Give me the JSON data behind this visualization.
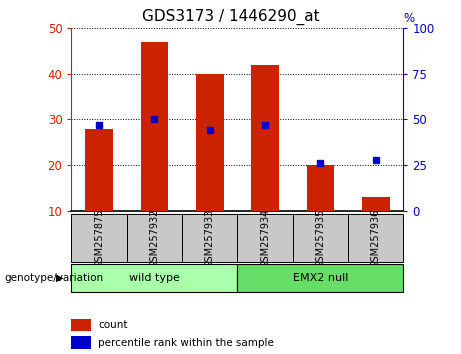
{
  "title": "GDS3173 / 1446290_at",
  "categories": [
    "GSM257875",
    "GSM257932",
    "GSM257933",
    "GSM257934",
    "GSM257935",
    "GSM257936"
  ],
  "bar_values": [
    28,
    47,
    40,
    42,
    20,
    13
  ],
  "percentile_values": [
    47,
    50,
    44,
    47,
    26,
    28
  ],
  "ylim_left": [
    10,
    50
  ],
  "ylim_right": [
    0,
    100
  ],
  "yticks_left": [
    10,
    20,
    30,
    40,
    50
  ],
  "yticks_right": [
    0,
    25,
    50,
    75,
    100
  ],
  "bar_color": "#cc2200",
  "marker_color": "#0000cc",
  "xlabel_area_color": "#c8c8c8",
  "group_colors": [
    "#90ee90",
    "#5cd65c"
  ],
  "group_label": "genotype/variation",
  "wild_type_label": "wild type",
  "emx2_null_label": "EMX2 null",
  "legend_count_label": "count",
  "legend_pct_label": "percentile rank within the sample",
  "title_fontsize": 11,
  "tick_fontsize": 8.5,
  "cat_fontsize": 7,
  "group_fontsize": 8,
  "legend_fontsize": 7.5
}
